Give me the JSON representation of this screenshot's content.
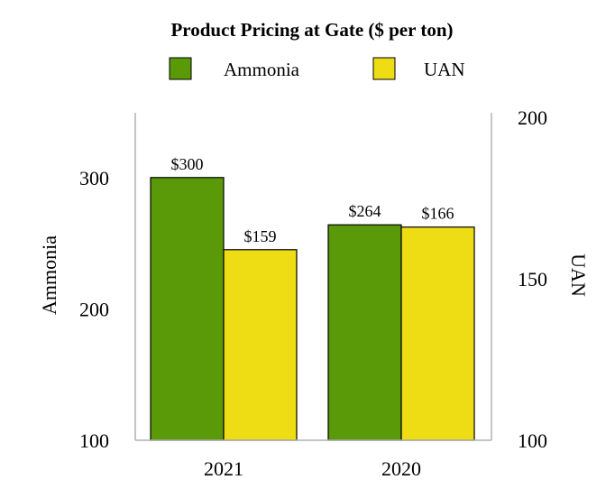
{
  "chart_data": {
    "type": "bar",
    "title": "Product Pricing at Gate ($ per ton)",
    "categories": [
      "2021",
      "2020"
    ],
    "series": [
      {
        "name": "Ammonia",
        "axis": "left",
        "color": "#5a9a08",
        "values": [
          300,
          264
        ],
        "labels": [
          "$300",
          "$264"
        ]
      },
      {
        "name": "UAN",
        "axis": "right",
        "color": "#eedd14",
        "values": [
          159,
          166
        ],
        "labels": [
          "$159",
          "$166"
        ]
      }
    ],
    "left_axis": {
      "label": "Ammonia",
      "ylim": [
        100,
        350
      ],
      "ticks": [
        100,
        200,
        300
      ],
      "tick_labels": [
        "100",
        "200",
        "300"
      ]
    },
    "right_axis": {
      "label": "UAN",
      "ylim": [
        100,
        200
      ],
      "ticks": [
        100,
        150,
        200
      ],
      "tick_labels": [
        "100",
        "150",
        "200"
      ]
    },
    "legend_position": "top-center",
    "grid": false
  }
}
